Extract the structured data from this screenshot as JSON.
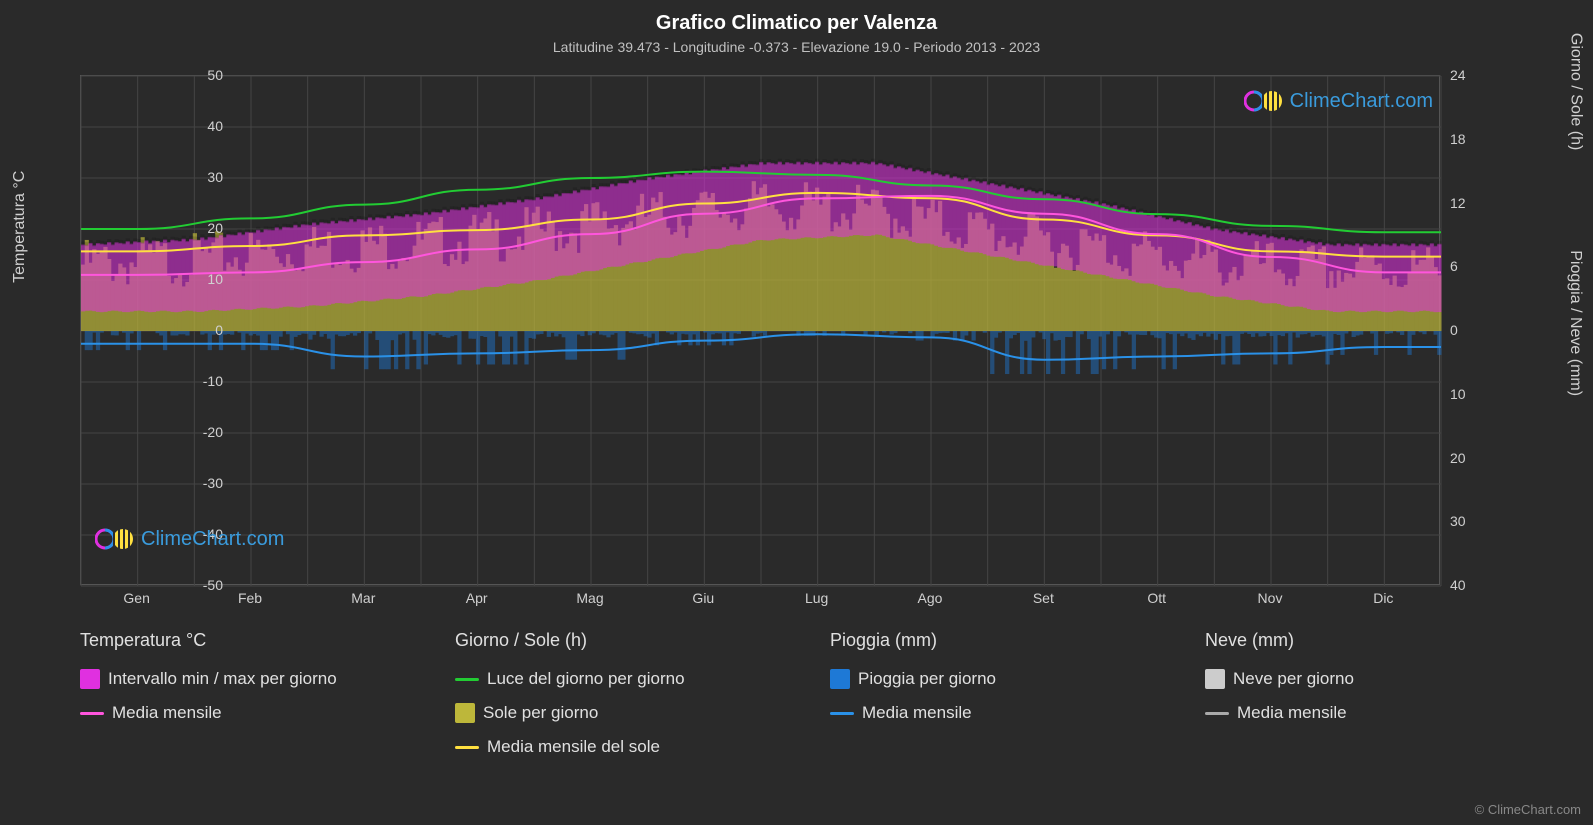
{
  "title": "Grafico Climatico per Valenza",
  "subtitle": "Latitudine 39.473 - Longitudine -0.373 - Elevazione 19.0 - Periodo 2013 - 2023",
  "axis_left_title": "Temperatura °C",
  "axis_right_top_title": "Giorno / Sole (h)",
  "axis_right_bottom_title": "Pioggia / Neve (mm)",
  "chart": {
    "background": "#2a2a2a",
    "plot_bg": "#2a2a2a",
    "grid_color": "#444444",
    "text_color": "#d0d0d0",
    "left_axis": {
      "min": -50,
      "max": 50,
      "step": 10,
      "ticks": [
        -50,
        -40,
        -30,
        -20,
        -10,
        0,
        10,
        20,
        30,
        40,
        50
      ]
    },
    "right_axis_top": {
      "min": 0,
      "max": 24,
      "step": 6,
      "ticks": [
        0,
        6,
        12,
        18,
        24
      ]
    },
    "right_axis_bottom": {
      "min": 0,
      "max": 40,
      "step": 10,
      "ticks": [
        0,
        10,
        20,
        30,
        40
      ]
    },
    "months": [
      "Gen",
      "Feb",
      "Mar",
      "Apr",
      "Mag",
      "Giu",
      "Lug",
      "Ago",
      "Set",
      "Ott",
      "Nov",
      "Dic"
    ],
    "series": {
      "temp_range": {
        "color": "#e030e0",
        "fill_opacity": 0.55,
        "min": [
          5,
          5,
          6,
          8,
          11,
          15,
          19,
          20,
          16,
          12,
          8,
          5
        ],
        "max": [
          18,
          19,
          22,
          24,
          27,
          31,
          34,
          34,
          30,
          26,
          21,
          18
        ]
      },
      "temp_mean": {
        "color": "#ff55dd",
        "width": 2,
        "values": [
          11,
          11.5,
          13.5,
          16,
          19,
          23,
          26,
          26.5,
          23,
          19,
          14.5,
          11.5
        ]
      },
      "daylight": {
        "color": "#22cc33",
        "width": 2,
        "values": [
          9.6,
          10.6,
          11.9,
          13.3,
          14.4,
          15,
          14.7,
          13.7,
          12.4,
          11,
          9.9,
          9.3
        ]
      },
      "sun_fill": {
        "color": "#bdb73a",
        "fill_opacity": 0.7,
        "values": [
          7.5,
          8,
          9,
          9.5,
          10.5,
          12,
          13,
          12.5,
          10.5,
          9,
          7.5,
          7
        ]
      },
      "sun_mean": {
        "color": "#ffe040",
        "width": 2,
        "values": [
          7.5,
          8,
          9,
          9.5,
          10.5,
          12,
          13,
          12.5,
          10.5,
          9,
          7.5,
          7
        ]
      },
      "rain_bars": {
        "color": "#1e79d6",
        "opacity": 0.45,
        "values": [
          2,
          2,
          4,
          3.5,
          3,
          1.5,
          0.5,
          1,
          4.5,
          4,
          3.5,
          2.5
        ]
      },
      "rain_mean": {
        "color": "#2a91e8",
        "width": 2,
        "values": [
          2,
          2,
          4,
          3.5,
          3,
          1.5,
          0.5,
          1,
          4.5,
          4,
          3.5,
          2.5
        ]
      }
    }
  },
  "legend": {
    "col1": {
      "header": "Temperatura °C",
      "items": [
        {
          "type": "box",
          "color": "#e030e0",
          "label": "Intervallo min / max per giorno"
        },
        {
          "type": "line",
          "color": "#ff55dd",
          "label": "Media mensile"
        }
      ]
    },
    "col2": {
      "header": "Giorno / Sole (h)",
      "items": [
        {
          "type": "line",
          "color": "#22cc33",
          "label": "Luce del giorno per giorno"
        },
        {
          "type": "box",
          "color": "#bdb73a",
          "label": "Sole per giorno"
        },
        {
          "type": "line",
          "color": "#ffe040",
          "label": "Media mensile del sole"
        }
      ]
    },
    "col3": {
      "header": "Pioggia (mm)",
      "items": [
        {
          "type": "box",
          "color": "#1e79d6",
          "label": "Pioggia per giorno"
        },
        {
          "type": "line",
          "color": "#2a91e8",
          "label": "Media mensile"
        }
      ]
    },
    "col4": {
      "header": "Neve (mm)",
      "items": [
        {
          "type": "box",
          "color": "#cccccc",
          "label": "Neve per giorno"
        },
        {
          "type": "line",
          "color": "#aaaaaa",
          "label": "Media mensile"
        }
      ]
    }
  },
  "watermark": "ClimeChart.com",
  "copyright": "© ClimeChart.com"
}
